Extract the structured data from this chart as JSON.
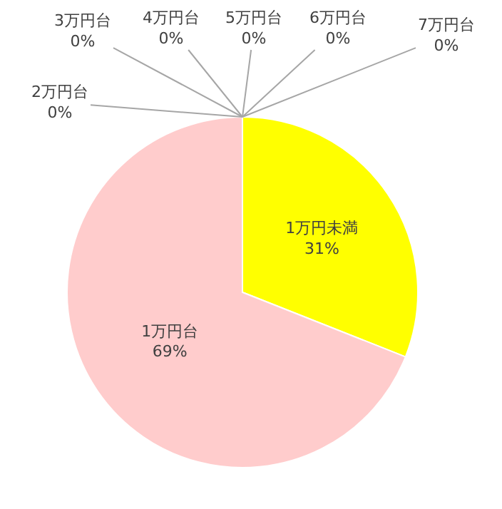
{
  "chart_data": {
    "type": "pie",
    "categories": [
      "1万円未満",
      "1万円台",
      "2万円台",
      "3万円台",
      "4万円台",
      "5万円台",
      "6万円台",
      "7万円台"
    ],
    "values": [
      31,
      69,
      0,
      0,
      0,
      0,
      0,
      0
    ],
    "colors": [
      "#ffff00",
      "#ffcccc",
      "#ffffff",
      "#ffffff",
      "#ffffff",
      "#ffffff",
      "#ffffff",
      "#ffffff"
    ],
    "value_labels": [
      "31%",
      "69%",
      "0%",
      "0%",
      "0%",
      "0%",
      "0%",
      "0%"
    ],
    "legend": false
  }
}
